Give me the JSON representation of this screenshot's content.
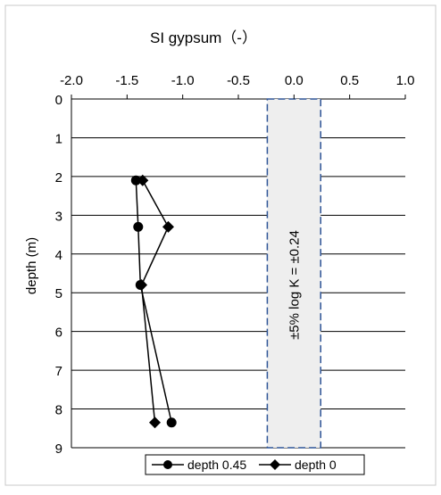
{
  "chart_data": {
    "type": "line",
    "title": "SI  gypsum（-）",
    "xlabel": "",
    "ylabel": "depth (m)",
    "xlim": [
      -2.0,
      1.0
    ],
    "ylim": [
      0,
      9
    ],
    "y_inverted": true,
    "x_axis_position": "top",
    "x_ticks": [
      "-2.0",
      "-1.5",
      "-1.0",
      "-0.5",
      "0.0",
      "0.5",
      "1.0"
    ],
    "y_ticks": [
      "0",
      "1",
      "2",
      "3",
      "4",
      "5",
      "6",
      "7",
      "8",
      "9"
    ],
    "grid": "horizontal",
    "legend_position": "bottom",
    "band": {
      "x_range": [
        -0.24,
        0.24
      ],
      "label": "±5% log K =  ±0.24",
      "fill": "#eeeeee",
      "stroke": "#2f5597"
    },
    "series": [
      {
        "name": "depth 0.45",
        "marker": "circle",
        "color": "#000000",
        "points": [
          {
            "x": -1.42,
            "y": 2.1
          },
          {
            "x": -1.4,
            "y": 3.3
          },
          {
            "x": -1.38,
            "y": 4.8
          },
          {
            "x": -1.1,
            "y": 8.35
          }
        ]
      },
      {
        "name": "depth 0",
        "marker": "diamond",
        "color": "#000000",
        "points": [
          {
            "x": -1.36,
            "y": 2.1
          },
          {
            "x": -1.13,
            "y": 3.3
          },
          {
            "x": -1.37,
            "y": 4.8
          },
          {
            "x": -1.25,
            "y": 8.35
          }
        ]
      }
    ]
  }
}
